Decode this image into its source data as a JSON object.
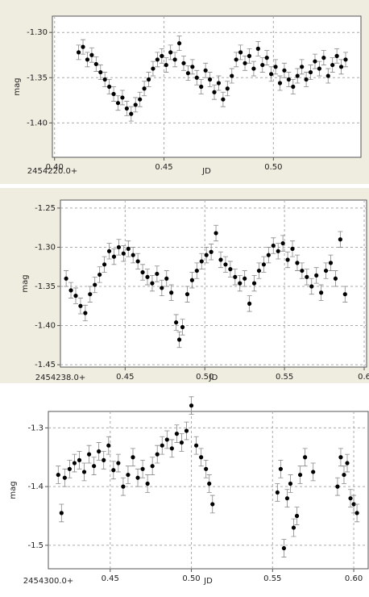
{
  "chart_data": [
    {
      "type": "scatter",
      "x_label": "JD",
      "y_label": "mag",
      "x_offset_label": "2454220.0+",
      "color": "#000000",
      "grid": true,
      "xlim": [
        0.399,
        0.54
      ],
      "ylim": [
        -1.438,
        -1.282
      ],
      "xticks": [
        {
          "value": 0.4,
          "label": "0.40"
        },
        0.45,
        {
          "value": 0.5,
          "label": "0.50"
        }
      ],
      "yticks": [
        {
          "value": -1.3,
          "label": "-1.30"
        },
        {
          "value": -1.35,
          "label": "-1.35"
        },
        {
          "value": -1.4,
          "label": "-1.40"
        }
      ],
      "x": [
        0.411,
        0.413,
        0.415,
        0.417,
        0.419,
        0.421,
        0.423,
        0.425,
        0.427,
        0.429,
        0.431,
        0.433,
        0.435,
        0.437,
        0.439,
        0.441,
        0.443,
        0.445,
        0.447,
        0.449,
        0.451,
        0.453,
        0.455,
        0.457,
        0.459,
        0.461,
        0.463,
        0.465,
        0.467,
        0.469,
        0.471,
        0.473,
        0.475,
        0.477,
        0.479,
        0.481,
        0.483,
        0.485,
        0.487,
        0.489,
        0.491,
        0.493,
        0.495,
        0.497,
        0.499,
        0.501,
        0.503,
        0.505,
        0.507,
        0.509,
        0.511,
        0.513,
        0.515,
        0.517,
        0.519,
        0.521,
        0.523,
        0.525,
        0.527,
        0.529,
        0.531,
        0.533
      ],
      "values": [
        -1.322,
        -1.316,
        -1.33,
        -1.325,
        -1.335,
        -1.344,
        -1.352,
        -1.36,
        -1.368,
        -1.378,
        -1.372,
        -1.384,
        -1.39,
        -1.38,
        -1.374,
        -1.362,
        -1.352,
        -1.34,
        -1.33,
        -1.326,
        -1.336,
        -1.322,
        -1.33,
        -1.312,
        -1.334,
        -1.345,
        -1.338,
        -1.35,
        -1.36,
        -1.342,
        -1.352,
        -1.366,
        -1.356,
        -1.374,
        -1.362,
        -1.348,
        -1.33,
        -1.322,
        -1.334,
        -1.326,
        -1.34,
        -1.318,
        -1.336,
        -1.328,
        -1.346,
        -1.338,
        -1.356,
        -1.342,
        -1.352,
        -1.36,
        -1.348,
        -1.338,
        -1.352,
        -1.344,
        -1.332,
        -1.34,
        -1.328,
        -1.348,
        -1.336,
        -1.326,
        -1.338,
        -1.33
      ],
      "errors": [
        0.008,
        0.008,
        0.008,
        0.008,
        0.008,
        0.008,
        0.008,
        0.008,
        0.008,
        0.008,
        0.008,
        0.008,
        0.008,
        0.008,
        0.008,
        0.008,
        0.008,
        0.008,
        0.008,
        0.008,
        0.008,
        0.008,
        0.008,
        0.008,
        0.008,
        0.008,
        0.008,
        0.008,
        0.008,
        0.008,
        0.008,
        0.008,
        0.008,
        0.008,
        0.008,
        0.008,
        0.008,
        0.008,
        0.008,
        0.008,
        0.008,
        0.008,
        0.008,
        0.008,
        0.008,
        0.008,
        0.008,
        0.008,
        0.008,
        0.008,
        0.008,
        0.008,
        0.008,
        0.008,
        0.008,
        0.008,
        0.008,
        0.008,
        0.008,
        0.008,
        0.008,
        0.008
      ]
    },
    {
      "type": "scatter",
      "x_label": "JD",
      "y_label": "mag",
      "x_offset_label": "2454238.0+",
      "color": "#000000",
      "grid": true,
      "xlim": [
        0.4094,
        0.6015
      ],
      "ylim": [
        -1.453,
        -1.2398
      ],
      "xticks": [
        0.45,
        {
          "value": 0.5,
          "label": "0.50"
        },
        0.55,
        0.6
      ],
      "yticks": [
        -1.25,
        {
          "value": -1.3,
          "label": "-1.30"
        },
        -1.35,
        {
          "value": -1.4,
          "label": "-1.40"
        },
        -1.45
      ],
      "x": [
        0.413,
        0.416,
        0.419,
        0.422,
        0.425,
        0.428,
        0.431,
        0.434,
        0.437,
        0.44,
        0.443,
        0.446,
        0.449,
        0.452,
        0.455,
        0.458,
        0.461,
        0.464,
        0.467,
        0.47,
        0.473,
        0.476,
        0.479,
        0.482,
        0.484,
        0.486,
        0.489,
        0.492,
        0.495,
        0.498,
        0.501,
        0.504,
        0.507,
        0.51,
        0.513,
        0.516,
        0.519,
        0.522,
        0.525,
        0.528,
        0.531,
        0.534,
        0.537,
        0.54,
        0.543,
        0.546,
        0.549,
        0.552,
        0.555,
        0.558,
        0.561,
        0.564,
        0.567,
        0.57,
        0.573,
        0.576,
        0.579,
        0.582,
        0.585,
        0.588
      ],
      "values": [
        -1.34,
        -1.355,
        -1.362,
        -1.375,
        -1.384,
        -1.36,
        -1.348,
        -1.335,
        -1.322,
        -1.305,
        -1.312,
        -1.3,
        -1.308,
        -1.302,
        -1.31,
        -1.318,
        -1.332,
        -1.338,
        -1.346,
        -1.334,
        -1.352,
        -1.34,
        -1.358,
        -1.396,
        -1.418,
        -1.402,
        -1.36,
        -1.342,
        -1.33,
        -1.318,
        -1.31,
        -1.306,
        -1.282,
        -1.316,
        -1.322,
        -1.328,
        -1.338,
        -1.346,
        -1.34,
        -1.372,
        -1.346,
        -1.33,
        -1.322,
        -1.31,
        -1.298,
        -1.305,
        -1.295,
        -1.316,
        -1.302,
        -1.32,
        -1.33,
        -1.338,
        -1.35,
        -1.336,
        -1.358,
        -1.33,
        -1.32,
        -1.34,
        -1.29,
        -1.36
      ],
      "errors": [
        0.01,
        0.01,
        0.01,
        0.01,
        0.01,
        0.01,
        0.01,
        0.01,
        0.01,
        0.01,
        0.01,
        0.01,
        0.01,
        0.01,
        0.01,
        0.01,
        0.01,
        0.01,
        0.01,
        0.01,
        0.01,
        0.01,
        0.01,
        0.01,
        0.01,
        0.01,
        0.01,
        0.01,
        0.01,
        0.01,
        0.01,
        0.01,
        0.01,
        0.01,
        0.01,
        0.01,
        0.01,
        0.01,
        0.01,
        0.01,
        0.01,
        0.01,
        0.01,
        0.01,
        0.01,
        0.01,
        0.01,
        0.01,
        0.01,
        0.01,
        0.01,
        0.01,
        0.01,
        0.01,
        0.01,
        0.01,
        0.01,
        0.01,
        0.01,
        0.01
      ]
    },
    {
      "type": "scatter",
      "x_label": "JD",
      "y_label": "mag",
      "x_offset_label": "2454300.0+",
      "color": "#000000",
      "grid": true,
      "xlim": [
        0.4119,
        0.6089
      ],
      "ylim": [
        -1.54,
        -1.272
      ],
      "xticks": [
        0.45,
        {
          "value": 0.5,
          "label": "0.50"
        },
        0.55,
        {
          "value": 0.6,
          "label": "0.60"
        }
      ],
      "yticks": [
        -1.3,
        -1.4,
        -1.5
      ],
      "x": [
        0.418,
        0.42,
        0.422,
        0.425,
        0.428,
        0.431,
        0.434,
        0.437,
        0.44,
        0.443,
        0.446,
        0.449,
        0.452,
        0.455,
        0.458,
        0.461,
        0.464,
        0.467,
        0.47,
        0.473,
        0.476,
        0.479,
        0.482,
        0.485,
        0.488,
        0.491,
        0.494,
        0.497,
        0.5,
        0.503,
        0.506,
        0.509,
        0.511,
        0.513,
        0.553,
        0.555,
        0.557,
        0.559,
        0.561,
        0.563,
        0.565,
        0.567,
        0.57,
        0.575,
        0.59,
        0.592,
        0.594,
        0.596,
        0.598,
        0.6,
        0.602
      ],
      "values": [
        -1.38,
        -1.445,
        -1.385,
        -1.37,
        -1.36,
        -1.355,
        -1.375,
        -1.345,
        -1.365,
        -1.34,
        -1.355,
        -1.33,
        -1.372,
        -1.36,
        -1.4,
        -1.38,
        -1.35,
        -1.385,
        -1.37,
        -1.395,
        -1.365,
        -1.345,
        -1.33,
        -1.32,
        -1.335,
        -1.31,
        -1.325,
        -1.305,
        -1.262,
        -1.33,
        -1.35,
        -1.37,
        -1.395,
        -1.43,
        -1.41,
        -1.37,
        -1.505,
        -1.42,
        -1.395,
        -1.47,
        -1.45,
        -1.38,
        -1.35,
        -1.375,
        -1.4,
        -1.35,
        -1.38,
        -1.36,
        -1.42,
        -1.43,
        -1.445
      ],
      "errors": [
        0.015,
        0.015,
        0.015,
        0.015,
        0.015,
        0.015,
        0.015,
        0.015,
        0.015,
        0.015,
        0.015,
        0.015,
        0.015,
        0.015,
        0.015,
        0.015,
        0.015,
        0.015,
        0.015,
        0.015,
        0.015,
        0.015,
        0.015,
        0.015,
        0.015,
        0.015,
        0.015,
        0.015,
        0.015,
        0.015,
        0.015,
        0.015,
        0.015,
        0.015,
        0.015,
        0.015,
        0.015,
        0.015,
        0.015,
        0.015,
        0.015,
        0.015,
        0.015,
        0.015,
        0.015,
        0.015,
        0.015,
        0.015,
        0.015,
        0.015,
        0.015
      ]
    }
  ]
}
